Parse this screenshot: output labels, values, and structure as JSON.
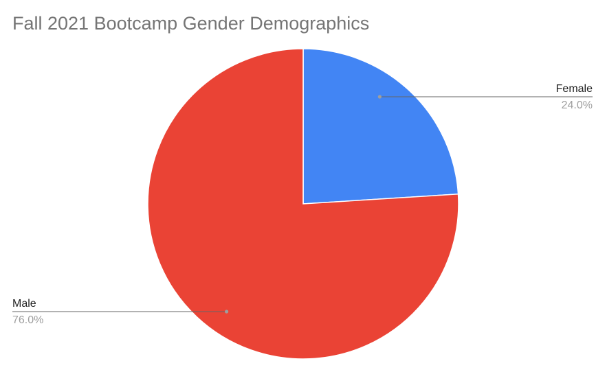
{
  "chart_data": {
    "type": "pie",
    "title": "Fall 2021 Bootcamp Gender Demographics",
    "slices": [
      {
        "name": "Female",
        "value": 24.0,
        "label": "24.0%",
        "color": "#4285f4"
      },
      {
        "name": "Male",
        "value": 76.0,
        "label": "76.0%",
        "color": "#ea4335"
      }
    ],
    "legend": "none",
    "label_style": "outside-callout"
  }
}
